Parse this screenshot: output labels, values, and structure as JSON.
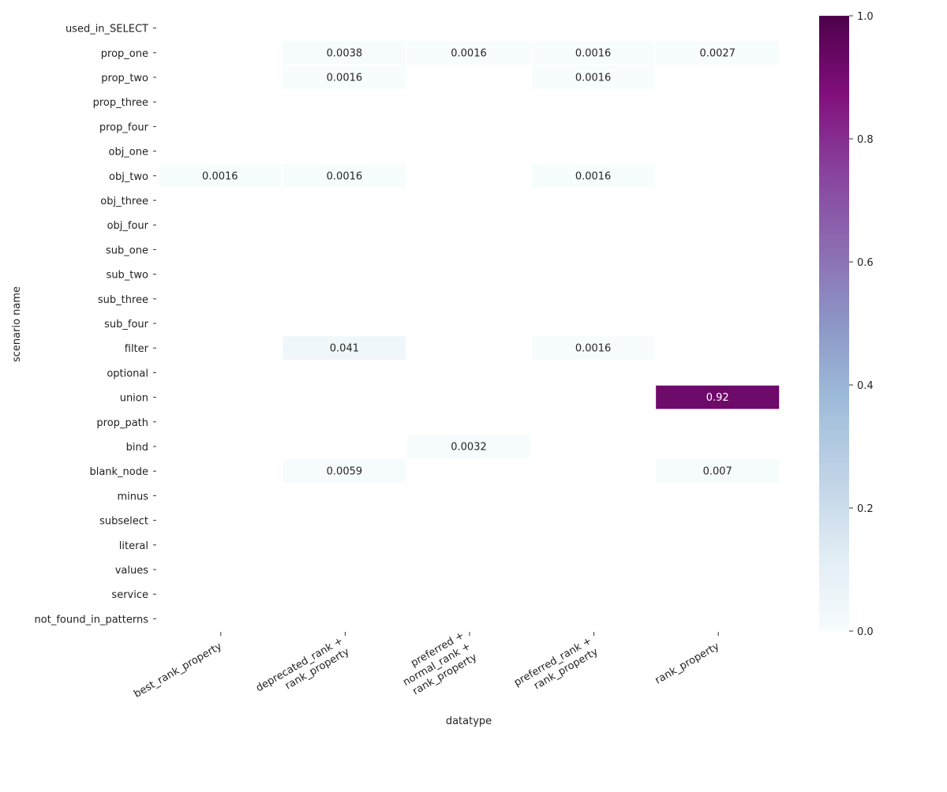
{
  "chart_data": {
    "type": "heatmap",
    "title": "",
    "xlabel": "datatype",
    "ylabel": "scenario name",
    "x_categories": [
      [
        "best_rank_property"
      ],
      [
        "deprecated_rank +",
        "rank_property"
      ],
      [
        "preferred +",
        "normal_rank +",
        "rank_property"
      ],
      [
        "preferred_rank +",
        "rank_property"
      ],
      [
        "rank_property"
      ]
    ],
    "y_categories": [
      "used_in_SELECT",
      "prop_one",
      "prop_two",
      "prop_three",
      "prop_four",
      "obj_one",
      "obj_two",
      "obj_three",
      "obj_four",
      "sub_one",
      "sub_two",
      "sub_three",
      "sub_four",
      "filter",
      "optional",
      "union",
      "prop_path",
      "bind",
      "blank_node",
      "minus",
      "subselect",
      "literal",
      "values",
      "service",
      "not_found_in_patterns"
    ],
    "values": [
      [
        0,
        0,
        0,
        0,
        0
      ],
      [
        0,
        0.0038,
        0.0016,
        0.0016,
        0.0027
      ],
      [
        0,
        0.0016,
        0,
        0.0016,
        0
      ],
      [
        0,
        0,
        0,
        0,
        0
      ],
      [
        0,
        0,
        0,
        0,
        0
      ],
      [
        0,
        0,
        0,
        0,
        0
      ],
      [
        0.0016,
        0.0016,
        0,
        0.0016,
        0
      ],
      [
        0,
        0,
        0,
        0,
        0
      ],
      [
        0,
        0,
        0,
        0,
        0
      ],
      [
        0,
        0,
        0,
        0,
        0
      ],
      [
        0,
        0,
        0,
        0,
        0
      ],
      [
        0,
        0,
        0,
        0,
        0
      ],
      [
        0,
        0,
        0,
        0,
        0
      ],
      [
        0,
        0.041,
        0,
        0.0016,
        0
      ],
      [
        0,
        0,
        0,
        0,
        0
      ],
      [
        0,
        0,
        0,
        0,
        0.92
      ],
      [
        0,
        0,
        0,
        0,
        0
      ],
      [
        0,
        0,
        0.0032,
        0,
        0
      ],
      [
        0,
        0.0059,
        0,
        0,
        0.007
      ],
      [
        0,
        0,
        0,
        0,
        0
      ],
      [
        0,
        0,
        0,
        0,
        0
      ],
      [
        0,
        0,
        0,
        0,
        0
      ],
      [
        0,
        0,
        0,
        0,
        0
      ],
      [
        0,
        0,
        0,
        0,
        0
      ],
      [
        0,
        0,
        0,
        0,
        0
      ]
    ],
    "cell_labels": [
      [
        "",
        "",
        "",
        "",
        ""
      ],
      [
        "",
        "0.0038",
        "0.0016",
        "0.0016",
        "0.0027"
      ],
      [
        "",
        "0.0016",
        "",
        "0.0016",
        ""
      ],
      [
        "",
        "",
        "",
        "",
        ""
      ],
      [
        "",
        "",
        "",
        "",
        ""
      ],
      [
        "",
        "",
        "",
        "",
        ""
      ],
      [
        "0.0016",
        "0.0016",
        "",
        "0.0016",
        ""
      ],
      [
        "",
        "",
        "",
        "",
        ""
      ],
      [
        "",
        "",
        "",
        "",
        ""
      ],
      [
        "",
        "",
        "",
        "",
        ""
      ],
      [
        "",
        "",
        "",
        "",
        ""
      ],
      [
        "",
        "",
        "",
        "",
        ""
      ],
      [
        "",
        "",
        "",
        "",
        ""
      ],
      [
        "",
        "0.041",
        "",
        "0.0016",
        ""
      ],
      [
        "",
        "",
        "",
        "",
        ""
      ],
      [
        "",
        "",
        "",
        "",
        "0.92"
      ],
      [
        "",
        "",
        "",
        "",
        ""
      ],
      [
        "",
        "",
        "0.0032",
        "",
        ""
      ],
      [
        "",
        "0.0059",
        "",
        "",
        "0.007"
      ],
      [
        "",
        "",
        "",
        "",
        ""
      ],
      [
        "",
        "",
        "",
        "",
        ""
      ],
      [
        "",
        "",
        "",
        "",
        ""
      ],
      [
        "",
        "",
        "",
        "",
        ""
      ],
      [
        "",
        "",
        "",
        "",
        ""
      ],
      [
        "",
        "",
        "",
        "",
        ""
      ]
    ],
    "colorbar": {
      "range": [
        0,
        1
      ],
      "ticks": [
        "0.0",
        "0.2",
        "0.4",
        "0.6",
        "0.8",
        "1.0"
      ],
      "colormap": "BuPu",
      "colors": [
        "#f7fcfd",
        "#e0ecf4",
        "#bfd3e6",
        "#9ebcda",
        "#8c96c6",
        "#8c6bb1",
        "#88419d",
        "#810f7c",
        "#4d004b"
      ]
    },
    "zero_cell_color": "#ffffff",
    "grid": false
  }
}
